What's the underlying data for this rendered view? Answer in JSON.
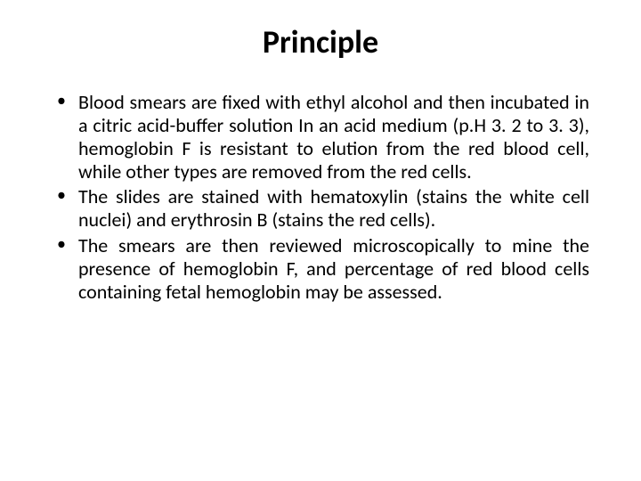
{
  "background_color": "#ffffff",
  "text_color": "#000000",
  "font_family": "Calibri, 'Segoe UI', Arial, sans-serif",
  "title": {
    "text": "Principle",
    "fontsize": 36,
    "fontweight": 700,
    "align": "center"
  },
  "bullets": {
    "fontsize": 22,
    "line_height": 1.19,
    "text_align": "justify",
    "marker": "•",
    "items": [
      "Blood smears are fixed with ethyl alcohol and then incubated in a citric acid-buffer solution In an acid medium (p.H 3. 2 to 3. 3), hemoglobin F is resistant to elution from the red blood cell, while other types are removed from the red cells.",
      "The slides are stained with hematoxylin (stains the white cell nuclei) and erythrosin B (stains the red cells).",
      "The smears are then reviewed microscopically to mine the presence of hemoglobin F, and percentage of red blood cells containing fetal hemoglobin may be assessed."
    ]
  }
}
